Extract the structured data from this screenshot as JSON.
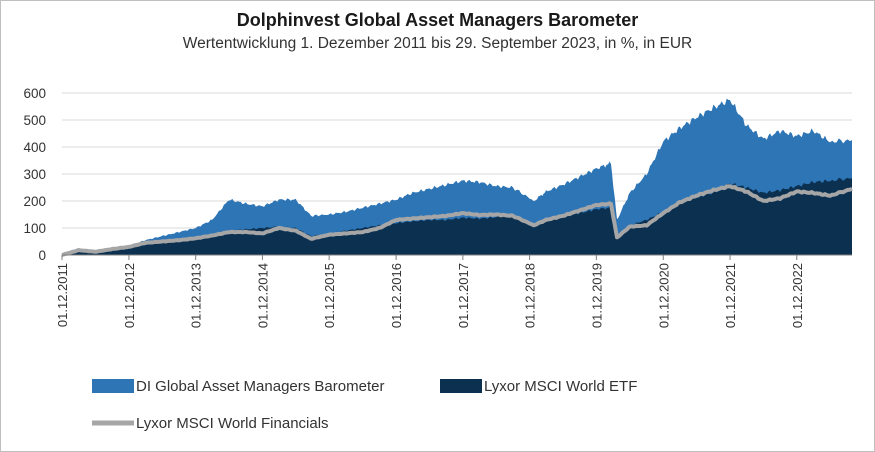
{
  "chart_data": {
    "type": "area",
    "title": "Dolphinvest Global Asset Managers Barometer",
    "subtitle": "Wertentwicklung 1. Dezember 2011 bis 29. September 2023, in %, in EUR",
    "xlabel": "",
    "ylabel": "",
    "ylim": [
      0,
      600
    ],
    "yticks": [
      "0",
      "100",
      "200",
      "300",
      "400",
      "500",
      "600"
    ],
    "xlim": [
      "2011-12-01",
      "2023-09-29"
    ],
    "xticks": [
      "01.12.2011",
      "01.12.2012",
      "01.12.2013",
      "01.12.2014",
      "01.12.2015",
      "01.12.2016",
      "01.12.2017",
      "01.12.2018",
      "01.12.2019",
      "01.12.2020",
      "01.12.2021",
      "01.12.2022"
    ],
    "grid": "horizontal",
    "legend_position": "bottom",
    "x": [
      "2011-12-01",
      "2012-03-01",
      "2012-06-01",
      "2012-09-01",
      "2012-12-01",
      "2013-03-01",
      "2013-06-01",
      "2013-09-01",
      "2013-12-01",
      "2014-03-01",
      "2014-06-01",
      "2014-09-01",
      "2014-12-01",
      "2015-03-01",
      "2015-06-01",
      "2015-08-24",
      "2015-12-01",
      "2016-03-01",
      "2016-06-01",
      "2016-09-01",
      "2016-12-01",
      "2017-03-01",
      "2017-06-01",
      "2017-09-01",
      "2017-12-01",
      "2018-03-01",
      "2018-06-01",
      "2018-09-01",
      "2018-12-24",
      "2019-03-01",
      "2019-06-01",
      "2019-09-01",
      "2019-12-01",
      "2020-02-19",
      "2020-03-23",
      "2020-06-01",
      "2020-09-01",
      "2020-12-01",
      "2021-03-01",
      "2021-06-01",
      "2021-09-01",
      "2021-12-01",
      "2022-03-01",
      "2022-06-01",
      "2022-09-01",
      "2022-12-01",
      "2023-03-01",
      "2023-06-01",
      "2023-09-29"
    ],
    "series": [
      {
        "name": "DI Global Asset Managers Barometer",
        "color": "#2e75b6",
        "style": "area",
        "values": [
          0,
          20,
          15,
          25,
          35,
          55,
          70,
          85,
          100,
          130,
          205,
          190,
          180,
          205,
          205,
          145,
          150,
          160,
          175,
          190,
          205,
          230,
          245,
          260,
          275,
          270,
          255,
          250,
          200,
          235,
          260,
          290,
          320,
          340,
          130,
          230,
          300,
          420,
          470,
          510,
          545,
          575,
          480,
          430,
          460,
          440,
          460,
          420,
          425
        ]
      },
      {
        "name": "Lyxor MSCI World ETF",
        "color": "#0b3050",
        "style": "area",
        "values": [
          0,
          10,
          10,
          20,
          25,
          38,
          45,
          55,
          60,
          75,
          90,
          95,
          100,
          105,
          100,
          70,
          80,
          90,
          100,
          110,
          118,
          125,
          130,
          130,
          138,
          135,
          140,
          150,
          110,
          135,
          150,
          155,
          170,
          175,
          70,
          110,
          130,
          160,
          190,
          215,
          230,
          265,
          250,
          230,
          240,
          255,
          270,
          275,
          285
        ]
      },
      {
        "name": "Lyxor MSCI World Financials",
        "color": "#a6a6a6",
        "style": "line",
        "values": [
          0,
          18,
          12,
          22,
          30,
          45,
          50,
          55,
          62,
          72,
          85,
          85,
          80,
          100,
          90,
          60,
          75,
          80,
          85,
          100,
          130,
          135,
          140,
          145,
          155,
          148,
          150,
          145,
          110,
          130,
          145,
          165,
          185,
          190,
          65,
          105,
          110,
          155,
          195,
          220,
          240,
          255,
          235,
          200,
          210,
          235,
          230,
          220,
          245
        ]
      }
    ]
  }
}
